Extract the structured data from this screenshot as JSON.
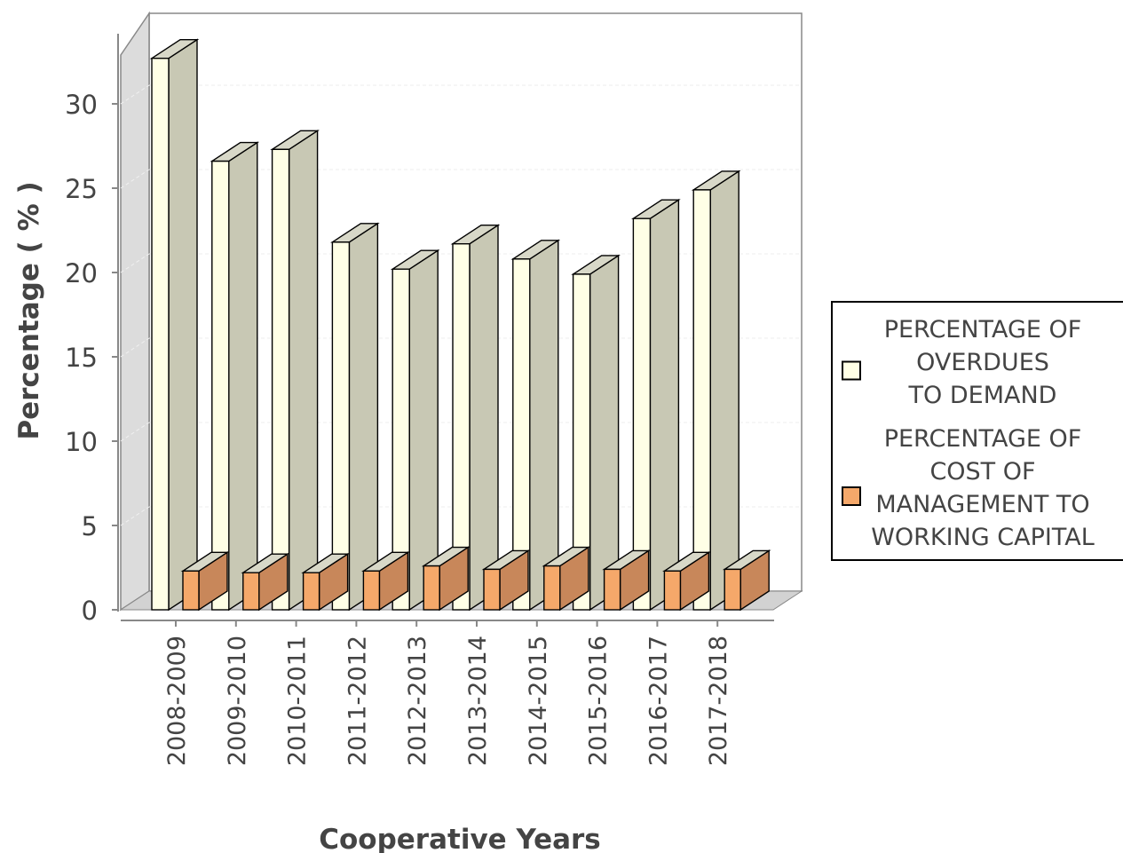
{
  "chart_data": {
    "type": "bar",
    "style": "3d-clustered",
    "xlabel": "Cooperative Years",
    "ylabel": "Percentage ( % )",
    "ylim": [
      0,
      34
    ],
    "yticks": [
      0,
      5,
      10,
      15,
      20,
      25,
      30
    ],
    "grid": true,
    "legend_position": "right",
    "categories": [
      "2008-2009",
      "2009-2010",
      "2010-2011",
      "2011-2012",
      "2012-2013",
      "2013-2014",
      "2014-2015",
      "2015-2016",
      "2016-2017",
      "2017-2018"
    ],
    "series": [
      {
        "name": "PERCENTAGE OF OVERDUES TO DEMAND",
        "legend_lines": [
          "PERCENTAGE OF",
          "OVERDUES",
          "TO DEMAND"
        ],
        "color": "#ffffe6",
        "side_color": "#c8c8b4",
        "values": [
          32.7,
          26.6,
          27.3,
          21.8,
          20.2,
          21.7,
          20.8,
          19.9,
          23.2,
          24.9
        ]
      },
      {
        "name": "PERCENTAGE OF COST OF MANAGEMENT TO WORKING CAPITAL",
        "legend_lines": [
          "PERCENTAGE OF",
          "COST OF",
          "MANAGEMENT TO",
          "WORKING CAPITAL"
        ],
        "color": "#f5a86a",
        "side_color": "#c8875a",
        "values": [
          2.3,
          2.2,
          2.2,
          2.3,
          2.6,
          2.4,
          2.6,
          2.4,
          2.3,
          2.4
        ]
      }
    ]
  }
}
